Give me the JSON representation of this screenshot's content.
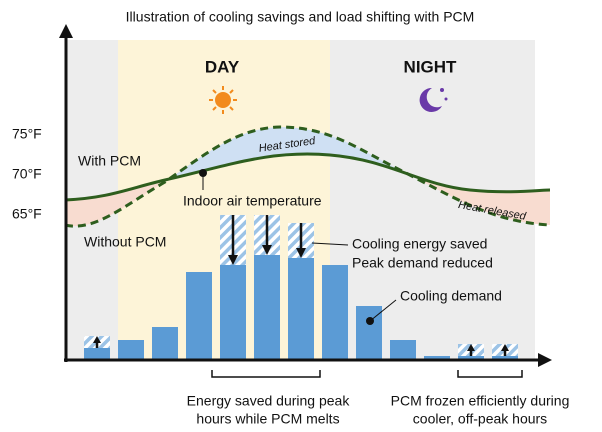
{
  "title": "Illustration of cooling savings and load shifting with PCM",
  "periods": {
    "day": "DAY",
    "night": "NIGHT"
  },
  "y_axis_labels": [
    "75°F",
    "70°F",
    "65°F"
  ],
  "curves": {
    "with_pcm": "With PCM",
    "without_pcm": "Without PCM",
    "heat_stored": "Heat stored",
    "heat_released": "Heat released"
  },
  "annotations": {
    "indoor_air": "Indoor air temperature",
    "energy_saved": "Cooling energy saved",
    "peak_reduced": "Peak demand reduced",
    "cooling_demand": "Cooling demand"
  },
  "footnotes": {
    "left": [
      "Energy saved during peak",
      "hours while PCM melts"
    ],
    "right": [
      "PCM frozen efficiently during",
      "cooler, off-peak hours"
    ]
  }
}
